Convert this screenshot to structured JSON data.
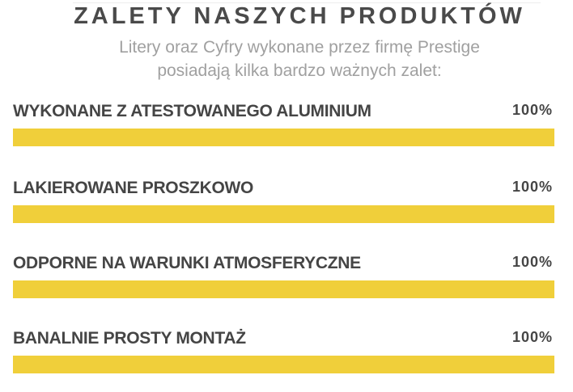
{
  "header": {
    "title": "ZALETY NASZYCH PRODUKTÓW",
    "subtitle_lines": [
      "Litery oraz Cyfry wykonane przez firmę Prestige",
      "posiadają kilka bardzo ważnych zalet:"
    ]
  },
  "accent_color": "#f0cf3a",
  "skills": [
    {
      "label": "WYKONANE Z ATESTOWANEGO ALUMINIUM",
      "percent_text": "100%",
      "value": 100
    },
    {
      "label": "LAKIEROWANE PROSZKOWO",
      "percent_text": "100%",
      "value": 100
    },
    {
      "label": "ODPORNE NA WARUNKI ATMOSFERYCZNE",
      "percent_text": "100%",
      "value": 100
    },
    {
      "label": "BANALNIE PROSTY MONTAŻ",
      "percent_text": "100%",
      "value": 100
    }
  ]
}
